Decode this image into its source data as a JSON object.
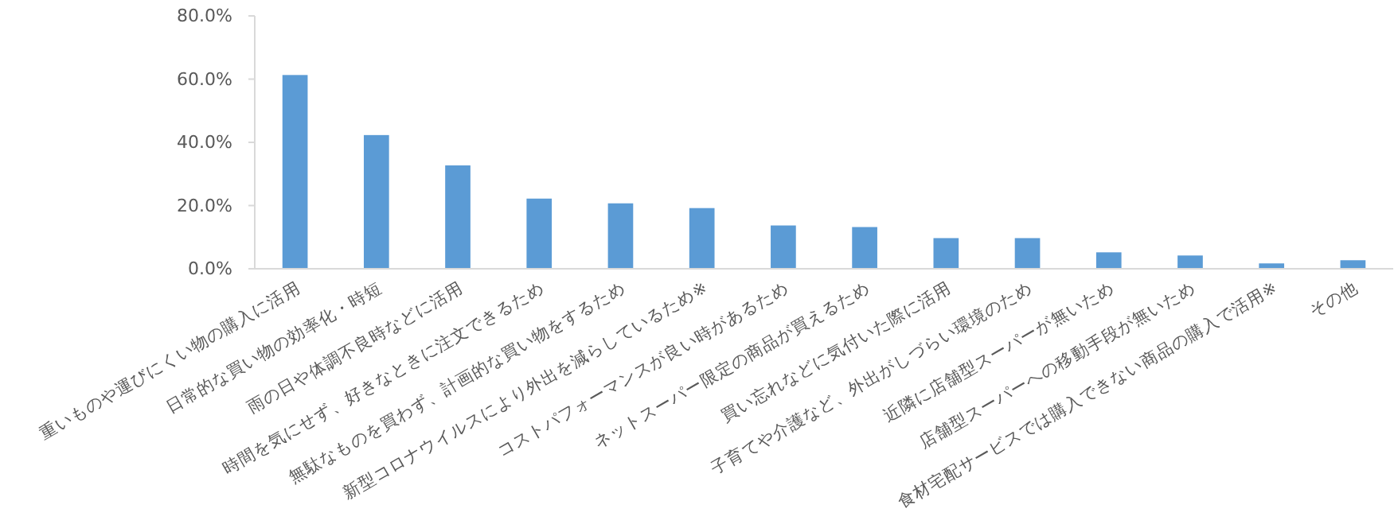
{
  "chart_data": {
    "type": "bar",
    "categories": [
      "重いものや運びにくい物の購入に活用",
      "日常的な買い物の効率化・時短",
      "雨の日や体調不良時などに活用",
      "時間を気にせず、好きなときに注文できるため",
      "無駄なものを買わず、計画的な買い物をするため",
      "新型コロナウイルスにより外出を減らしているため※",
      "コストパフォーマンスが良い時があるため",
      "ネットスーパー限定の商品が買えるため",
      "買い忘れなどに気付いた際に活用",
      "子育てや介護など、外出がしづらい環境のため",
      "近隣に店舗型スーパーが無いため",
      "店舗型スーパーへの移動手段が無いため",
      "食材宅配サービスでは購入できない商品の購入で活用※",
      "その他"
    ],
    "values": [
      61.3,
      42.3,
      32.7,
      22.2,
      20.7,
      19.2,
      13.7,
      13.2,
      9.7,
      9.7,
      5.2,
      4.2,
      1.7,
      2.7
    ],
    "color": "#5b9bd5",
    "ylim": [
      0,
      80
    ],
    "yticks": [
      {
        "value": 0,
        "label": "0.0%"
      },
      {
        "value": 20,
        "label": "20.0%"
      },
      {
        "value": 40,
        "label": "40.0%"
      },
      {
        "value": 60,
        "label": "60.0%"
      },
      {
        "value": 80,
        "label": "80.0%"
      }
    ],
    "grid": false
  }
}
